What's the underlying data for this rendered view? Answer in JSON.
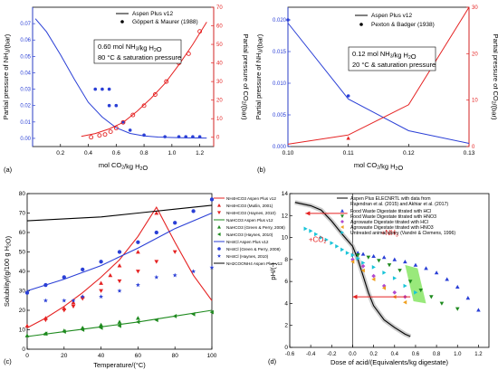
{
  "colors": {
    "blue": "#2a3fd6",
    "red": "#e52222",
    "black": "#000000",
    "green": "#1e8a1e",
    "gray": "#aaaaaa",
    "lime": "#7fe35a",
    "cyan": "#18c4d8",
    "purple": "#b04ad0",
    "orange": "#f0a020"
  },
  "chart_data": [
    {
      "panel": "(a)",
      "type": "line",
      "xlabel": "mol CO2/kg H2O",
      "ylabel_left": "Partial pressure of NH3/(bar)",
      "ylabel_right": "Partial pressure of CO2/(bar)",
      "xlim": [
        0.0,
        1.3
      ],
      "ylim_left": [
        -0.005,
        0.08
      ],
      "ylim_right": [
        -5,
        70
      ],
      "xticks": [
        "0.2",
        "0.4",
        "0.6",
        "0.8",
        "1.0",
        "1.2"
      ],
      "yticks_left": [
        "0.00",
        "0.01",
        "0.02",
        "0.03",
        "0.04",
        "0.05",
        "0.06",
        "0.07"
      ],
      "yticks_right": [
        "0",
        "10",
        "20",
        "30",
        "40",
        "50",
        "60",
        "70"
      ],
      "legend": [
        "Aspen Plus v12",
        "Göppert & Maurer (1988)"
      ],
      "annot1": "0.60 mol NH3/kg H2O",
      "annot2": "80 °C & saturation pressure",
      "series": [
        {
          "name": "Aspen Plus v12",
          "axis": "left",
          "kind": "line",
          "x": [
            0.02,
            0.1,
            0.2,
            0.3,
            0.4,
            0.5,
            0.6,
            0.7,
            0.8,
            0.9,
            1.0,
            1.1,
            1.25
          ],
          "y": [
            0.073,
            0.065,
            0.051,
            0.036,
            0.022,
            0.013,
            0.0065,
            0.003,
            0.0015,
            0.0008,
            0.0005,
            0.0003,
            0.0002
          ]
        },
        {
          "name": "Aspen Plus v12",
          "axis": "right",
          "kind": "line",
          "x": [
            0.35,
            0.45,
            0.55,
            0.65,
            0.75,
            0.85,
            0.95,
            1.05,
            1.15,
            1.25
          ],
          "y": [
            0.5,
            2,
            4.5,
            8,
            14,
            21,
            29,
            39,
            50,
            62
          ]
        },
        {
          "name": "Göppert & Maurer (1988)",
          "axis": "left",
          "kind": "points",
          "x": [
            0.45,
            0.5,
            0.55,
            0.55,
            0.6,
            0.65,
            0.7,
            0.8,
            0.95,
            1.05,
            1.1,
            1.15,
            1.2
          ],
          "y": [
            0.03,
            0.03,
            0.03,
            0.02,
            0.02,
            0.01,
            0.005,
            0.002,
            0.001,
            0.001,
            0.001,
            0.001,
            0.001
          ]
        },
        {
          "name": "Göppert & Maurer (1988)",
          "axis": "right",
          "kind": "points",
          "x": [
            0.42,
            0.48,
            0.52,
            0.56,
            0.6,
            0.65,
            0.72,
            0.8,
            0.88,
            0.96,
            1.05,
            1.12,
            1.2
          ],
          "y": [
            0,
            1,
            1.5,
            3,
            5,
            8,
            12,
            17,
            23,
            30,
            40,
            45,
            57
          ]
        }
      ]
    },
    {
      "panel": "(b)",
      "type": "line",
      "xlabel": "mol CO2/kg H2O",
      "ylabel_left": "Partial pressure of NH3/(bar)",
      "ylabel_right": "Partial pressure of CO2/(bar)",
      "xlim": [
        0.1,
        0.13
      ],
      "ylim_left": [
        0.0,
        0.022
      ],
      "ylim_right": [
        0,
        30
      ],
      "xticks": [
        "0.10",
        "0.11",
        "0.12",
        "0.13"
      ],
      "yticks_left": [
        "0.000",
        "0.005",
        "0.010",
        "0.015",
        "0.020"
      ],
      "yticks_right": [
        "0",
        "10",
        "20",
        "30"
      ],
      "legend": [
        "Aspen Plus v12",
        "Pexton & Badger (1938)"
      ],
      "annot1": "0.12 mol NH3/kg H2O",
      "annot2": "20 °C & saturation pressure",
      "series": [
        {
          "name": "Aspen Plus v12",
          "axis": "left",
          "kind": "line",
          "x": [
            0.1,
            0.11,
            0.12,
            0.13
          ],
          "y": [
            0.0195,
            0.0075,
            0.0025,
            0.0005
          ]
        },
        {
          "name": "Aspen Plus v12",
          "axis": "right",
          "kind": "line",
          "x": [
            0.1,
            0.11,
            0.12,
            0.13
          ],
          "y": [
            0.5,
            2.5,
            9,
            30
          ]
        },
        {
          "name": "Pexton & Badger (1938)",
          "axis": "left",
          "kind": "points",
          "x": [
            0.1,
            0.11
          ],
          "y": [
            0.02,
            0.008
          ]
        },
        {
          "name": "Pexton & Badger (1938)",
          "axis": "right",
          "kind": "points",
          "x": [
            0.11
          ],
          "y": [
            1.8
          ]
        }
      ]
    },
    {
      "panel": "(c)",
      "type": "line",
      "xlabel": "Temperature/(°C)",
      "ylabel": "Solubility/(g/100 g H2O)",
      "xlim": [
        0,
        100
      ],
      "ylim": [
        0,
        80
      ],
      "xticks": [
        "0",
        "20",
        "40",
        "60",
        "80",
        "100"
      ],
      "yticks": [
        "0",
        "10",
        "20",
        "30",
        "40",
        "50",
        "60",
        "70",
        "80"
      ],
      "legend": [
        "NH4HCO3 Aspen Plus v12",
        "NH4HCO3 (Mutlin, 2001)",
        "NH4HCO3 (Haynes, 2010)",
        "NaHCO3 Aspen Plus v12",
        "NaHCO3 (Green & Perry, 2008)",
        "NaHCO3 (Haynes, 2010)",
        "NH4Cl Aspen Plus v12",
        "NH4Cl (Green & Perry, 2008)",
        "NH4Cl (Haynes, 2010)",
        "NH2COONH4 Aspen Plus v12"
      ],
      "series": [
        {
          "name": "NH4HCO3 Aspen Plus v12",
          "color": "red",
          "kind": "line",
          "x": [
            0,
            10,
            20,
            30,
            40,
            50,
            60,
            70,
            80,
            90,
            100
          ],
          "y": [
            11,
            16,
            22,
            29,
            37,
            46,
            58,
            73,
            55,
            38,
            25
          ]
        },
        {
          "name": "NH4HCO3 (Mutlin, 2001)",
          "color": "red",
          "kind": "triup",
          "x": [
            0,
            10,
            20,
            25,
            30,
            40,
            45,
            50,
            60,
            70
          ],
          "y": [
            12,
            16,
            21,
            24,
            27,
            34,
            38,
            43,
            50,
            70
          ]
        },
        {
          "name": "NH4HCO3 (Haynes, 2010)",
          "color": "red",
          "kind": "tridown",
          "x": [
            10,
            20,
            25,
            30,
            40,
            50,
            60,
            70,
            80
          ],
          "y": [
            15,
            20,
            22,
            26,
            30,
            35,
            40,
            45,
            50
          ]
        },
        {
          "name": "NaHCO3 Aspen Plus v12",
          "color": "green",
          "kind": "line",
          "x": [
            0,
            20,
            40,
            60,
            80,
            100
          ],
          "y": [
            6.5,
            9,
            11.5,
            14,
            17,
            20
          ]
        },
        {
          "name": "NaHCO3 (Green & Perry, 2008)",
          "color": "green",
          "kind": "triup",
          "x": [
            0,
            10,
            20,
            30,
            40,
            50,
            60
          ],
          "y": [
            7,
            8,
            9.5,
            11,
            12.5,
            14,
            16
          ]
        },
        {
          "name": "NaHCO3 (Haynes, 2010)",
          "color": "green",
          "kind": "trileft",
          "x": [
            10,
            20,
            30,
            40,
            50,
            60,
            70,
            80,
            90,
            100
          ],
          "y": [
            8,
            9,
            10,
            11,
            12,
            14,
            15,
            17,
            18,
            19
          ]
        },
        {
          "name": "NH4Cl Aspen Plus v12",
          "color": "blue",
          "kind": "line",
          "x": [
            0,
            20,
            40,
            60,
            80,
            100
          ],
          "y": [
            30,
            36,
            43,
            52,
            62,
            70
          ]
        },
        {
          "name": "NH4Cl (Green & Perry, 2008)",
          "color": "blue",
          "kind": "circle",
          "x": [
            0,
            10,
            20,
            30,
            40,
            50,
            60,
            70,
            80,
            90,
            100
          ],
          "y": [
            29,
            33,
            37,
            41,
            45,
            50,
            55,
            60,
            65,
            71,
            77
          ]
        },
        {
          "name": "NH4Cl (Haynes, 2010)",
          "color": "blue",
          "kind": "star",
          "x": [
            10,
            20,
            25,
            30,
            40,
            50,
            60,
            70,
            80,
            90,
            100
          ],
          "y": [
            25,
            25,
            25,
            27,
            27,
            30,
            33,
            37,
            38,
            40,
            42
          ]
        },
        {
          "name": "NH2COONH4 Aspen Plus v12",
          "color": "black",
          "kind": "line",
          "x": [
            0,
            20,
            40,
            60,
            80,
            100
          ],
          "y": [
            66,
            67,
            68,
            70,
            72,
            74
          ]
        }
      ]
    },
    {
      "panel": "(d)",
      "type": "line",
      "xlabel": "Dose of acid/(Equivalents/kg digestate)",
      "ylabel": "pH/(-)",
      "xlim": [
        -0.6,
        1.3
      ],
      "ylim": [
        0,
        14
      ],
      "xticks": [
        "-0.6",
        "-0.4",
        "-0.2",
        "0.0",
        "0.2",
        "0.4",
        "0.6",
        "0.8",
        "1.0",
        "1.2"
      ],
      "yticks": [
        "0",
        "2",
        "4",
        "6",
        "8",
        "10",
        "12",
        "14"
      ],
      "annot_co2": "+CO2",
      "annot_nh3": "+NH3",
      "legend": [
        "Aspen Plus ELECNRTL with data from Rajendran et al. (2015) and Akhiar et al. (2017)",
        "Food Waste Digestate titrated with HCl",
        "Food Waste Digestate titrated with HNO3",
        "Agrowaste Digestate titrated with HCl",
        "Agrowaste Digestate titrated with HNO3",
        "Untreated animal slurry (Vandré & Clemens, 1996)"
      ],
      "series": [
        {
          "name": "Aspen Plus ELECNRTL",
          "color": "black",
          "kind": "line",
          "x": [
            -0.55,
            -0.4,
            -0.3,
            -0.2,
            -0.1,
            0,
            0.05,
            0.1,
            0.15,
            0.2,
            0.3,
            0.4,
            0.5,
            0.55
          ],
          "y": [
            13.2,
            12.9,
            12.5,
            11.5,
            10.3,
            9.2,
            8.0,
            6.5,
            5.0,
            3.8,
            2.5,
            1.8,
            1.2,
            1.0
          ]
        },
        {
          "name": "Food Waste Digestate titrated with HCl",
          "color": "blue",
          "kind": "triup",
          "x": [
            0.05,
            0.1,
            0.2,
            0.3,
            0.4,
            0.5,
            0.6,
            0.7,
            0.8,
            0.9,
            1.0,
            1.1,
            1.2
          ],
          "y": [
            8.6,
            8.5,
            8.3,
            8.2,
            8.0,
            7.8,
            7.5,
            7.2,
            6.8,
            6.2,
            5.5,
            4.5,
            3.4
          ]
        },
        {
          "name": "Food Waste Digestate titrated with HNO3",
          "color": "green",
          "kind": "tridown",
          "x": [
            0.05,
            0.15,
            0.25,
            0.35,
            0.45,
            0.55,
            0.65,
            0.75,
            0.85,
            1.0
          ],
          "y": [
            8.4,
            8.2,
            7.9,
            7.5,
            7.0,
            6.0,
            5.2,
            4.6,
            4.0,
            3.5
          ]
        },
        {
          "name": "Agrowaste Digestate titrated with HCl",
          "color": "purple",
          "kind": "diamond",
          "x": [
            0.0,
            0.1,
            0.2,
            0.3,
            0.4,
            0.5
          ],
          "y": [
            8.0,
            7.4,
            6.5,
            5.6,
            5.0,
            4.6
          ]
        },
        {
          "name": "Agrowaste Digestate titrated with HNO3",
          "color": "orange",
          "kind": "trileft",
          "x": [
            0.0,
            0.1,
            0.2,
            0.3,
            0.4,
            0.5
          ],
          "y": [
            7.8,
            7.0,
            6.2,
            5.4,
            4.6,
            4.1
          ]
        },
        {
          "name": "Untreated animal slurry (Vandré & Clemens, 1996)",
          "color": "cyan",
          "kind": "triright",
          "x": [
            -0.45,
            -0.4,
            -0.35,
            -0.3,
            -0.25,
            -0.2,
            -0.15,
            -0.1,
            -0.05,
            0.0,
            0.05,
            0.1,
            0.2,
            0.3,
            0.4,
            0.5,
            0.6
          ],
          "y": [
            10.8,
            10.6,
            10.3,
            10.0,
            9.8,
            9.5,
            9.2,
            8.9,
            8.6,
            8.4,
            8.1,
            7.7,
            7.3,
            6.8,
            6.3,
            5.6,
            5.0
          ]
        }
      ]
    }
  ],
  "panel_labels": [
    "(a)",
    "(b)",
    "(c)",
    "(d)"
  ]
}
